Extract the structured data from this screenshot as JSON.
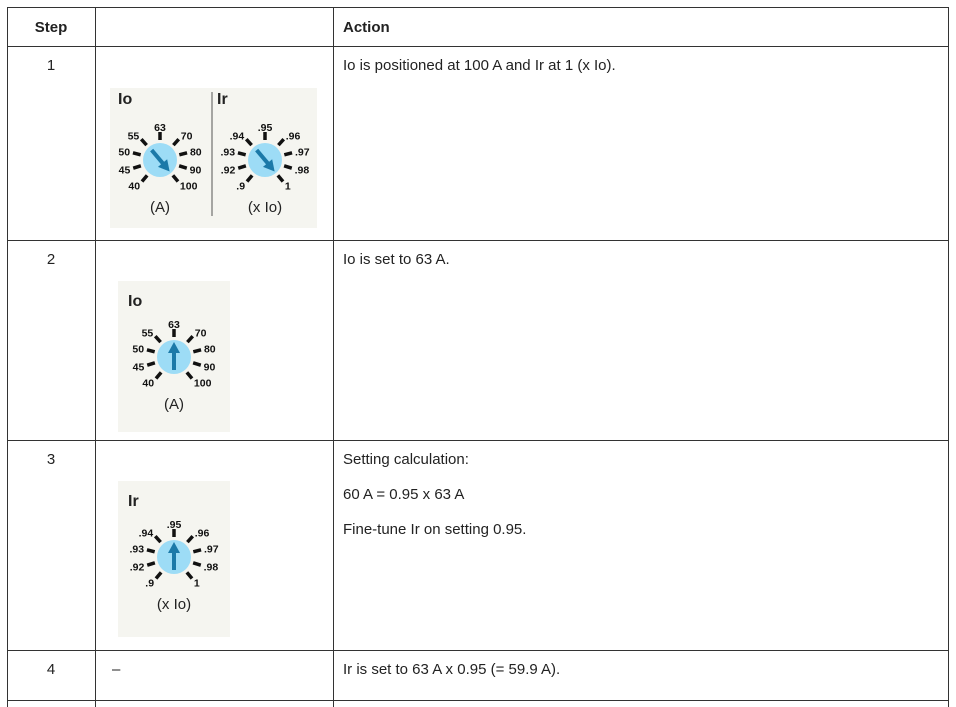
{
  "table": {
    "header": {
      "step": "Step",
      "action": "Action"
    },
    "rows": [
      {
        "step": "1",
        "dials": [
          {
            "title": "Io",
            "labels": [
              "40",
              "45",
              "50",
              "55",
              "63",
              "70",
              "80",
              "90",
              "100"
            ],
            "unit": "(A)"
          },
          {
            "title": "Ir",
            "labels": [
              ".9",
              ".92",
              ".93",
              ".94",
              ".95",
              ".96",
              ".97",
              ".98",
              "1"
            ],
            "unit": "(x Io)"
          }
        ],
        "action": [
          "Io is positioned at 100 A and Ir at 1 (x Io)."
        ]
      },
      {
        "step": "2",
        "dials": [
          {
            "title": "Io",
            "labels": [
              "40",
              "45",
              "50",
              "55",
              "63",
              "70",
              "80",
              "90",
              "100"
            ],
            "unit": "(A)"
          }
        ],
        "action": [
          "Io is set to 63 A."
        ]
      },
      {
        "step": "3",
        "dials": [
          {
            "title": "Ir",
            "labels": [
              ".9",
              ".92",
              ".93",
              ".94",
              ".95",
              ".96",
              ".97",
              ".98",
              "1"
            ],
            "unit": "(x Io)"
          }
        ],
        "action": [
          "Setting calculation:",
          "60 A = 0.95 x 63 A",
          "Fine-tune Ir on setting 0.95."
        ]
      },
      {
        "step": "4",
        "image_text": "–",
        "action": [
          "Ir is set to 63 A x 0.95 (= 59.9 A)."
        ]
      }
    ]
  }
}
